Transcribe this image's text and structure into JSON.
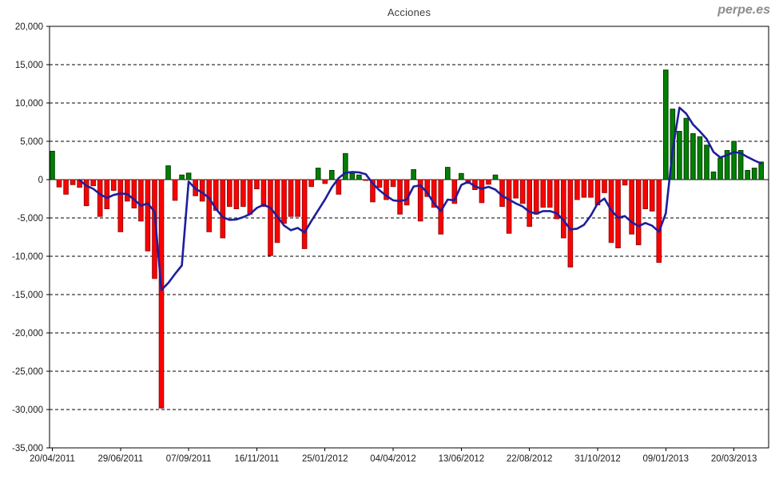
{
  "header": {
    "title": "Acciones",
    "watermark": "perpe.es"
  },
  "chart_data": {
    "type": "bar",
    "title": "Acciones",
    "subtitle": "",
    "frequency": "weekly",
    "n_points": 105,
    "x_label_every": 10,
    "x_tick_labels": [
      "20/04/2011",
      "29/06/2011",
      "07/09/2011",
      "16/11/2011",
      "25/01/2012",
      "04/04/2012",
      "13/06/2012",
      "22/08/2012",
      "31/10/2012",
      "09/01/2013",
      "20/03/2013"
    ],
    "ylim": [
      -35000,
      20000
    ],
    "y_tick_step": 5000,
    "y_tick_labels": [
      "20,000",
      "15,000",
      "10,000",
      "5,000",
      "0",
      "-5,000",
      "-10,000",
      "-15,000",
      "-20,000",
      "-25,000",
      "-30,000",
      "-35,000"
    ],
    "grid": "dashed horizontal lines every 5,000; solid zero line; framed plot box",
    "legend": "none",
    "bar_values": [
      3700,
      -950,
      -1900,
      -650,
      -1000,
      -3400,
      -800,
      -4800,
      -3800,
      -1400,
      -6800,
      -2800,
      -3700,
      -5400,
      -9300,
      -12900,
      -29800,
      1800,
      -2700,
      600,
      850,
      -2100,
      -2800,
      -6800,
      -4000,
      -7600,
      -3500,
      -3800,
      -3500,
      -4500,
      -1200,
      -3500,
      -9900,
      -8200,
      -5700,
      -4800,
      -4800,
      -9000,
      -900,
      1500,
      -500,
      1200,
      -1900,
      3400,
      800,
      600,
      -100,
      -2900,
      -1000,
      -2600,
      -900,
      -4500,
      -3300,
      1300,
      -5400,
      -2200,
      -3600,
      -7100,
      1600,
      -3100,
      800,
      -500,
      -1300,
      -3000,
      -600,
      600,
      -3500,
      -7000,
      -2400,
      -3100,
      -6100,
      -4500,
      -3600,
      -3600,
      -5100,
      -7600,
      -11400,
      -2600,
      -2300,
      -2300,
      -3300,
      -1700,
      -8200,
      -8900,
      -700,
      -7100,
      -8500,
      -3800,
      -4100,
      -10800,
      14300,
      9200,
      6300,
      8000,
      6000,
      5600,
      4500,
      1000,
      2800,
      3800,
      5000,
      3800,
      1200,
      1500,
      2300
    ],
    "line_overlay": {
      "type": "line",
      "name": "moving-average-line",
      "start_index": 4,
      "values": [
        -50,
        -800,
        -1200,
        -1900,
        -2400,
        -2000,
        -1800,
        -1900,
        -2600,
        -3400,
        -3100,
        -4200,
        -14400,
        -13500,
        -12300,
        -11200,
        -250,
        -1200,
        -1700,
        -2400,
        -3800,
        -4900,
        -5250,
        -5200,
        -4900,
        -4500,
        -3700,
        -3270,
        -3700,
        -4800,
        -6000,
        -6600,
        -6300,
        -6900,
        -5400,
        -4000,
        -2600,
        -1000,
        200,
        900,
        1000,
        950,
        700,
        -500,
        -1400,
        -2100,
        -2700,
        -2800,
        -2600,
        -900,
        -750,
        -1700,
        -3100,
        -4100,
        -2600,
        -2700,
        -700,
        -280,
        -870,
        -1200,
        -940,
        -1300,
        -2100,
        -2600,
        -3100,
        -3500,
        -4200,
        -4450,
        -4100,
        -4100,
        -4400,
        -5300,
        -6500,
        -6400,
        -5900,
        -4700,
        -3100,
        -2465,
        -4000,
        -4965,
        -4760,
        -5555,
        -6075,
        -5660,
        -6010,
        -6800,
        -4400,
        3800,
        9400,
        8600,
        7200,
        6300,
        5300,
        3600,
        2900,
        3200,
        3600,
        3450,
        2950,
        2500,
        2100
      ]
    },
    "colors": {
      "bar_positive": "#008000",
      "bar_positive_border": "#003c00",
      "bar_negative": "#fe0000",
      "bar_negative_border": "#98080a",
      "line": "#1e1e9c",
      "axis": "#000000",
      "labels": "#1a1a1a",
      "watermark": "#8c8c8c",
      "background": "#ffffff"
    }
  }
}
